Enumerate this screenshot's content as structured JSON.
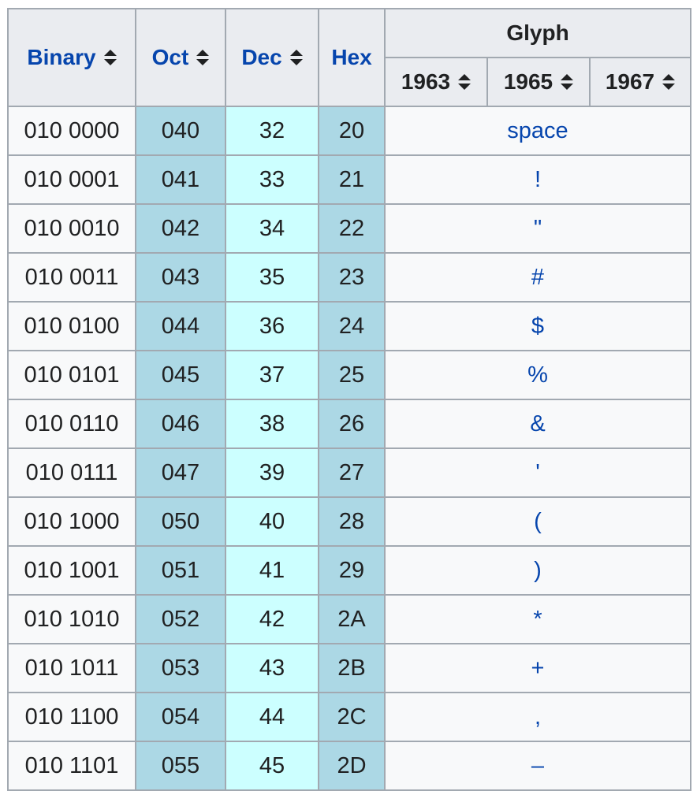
{
  "header": {
    "binary": "Binary",
    "oct": "Oct",
    "dec": "Dec",
    "hex": "Hex",
    "glyph": "Glyph",
    "years": [
      "1963",
      "1965",
      "1967"
    ]
  },
  "rows": [
    {
      "bin": "010 0000",
      "oct": "040",
      "dec": "32",
      "hex": "20",
      "glyph": "space"
    },
    {
      "bin": "010 0001",
      "oct": "041",
      "dec": "33",
      "hex": "21",
      "glyph": "!"
    },
    {
      "bin": "010 0010",
      "oct": "042",
      "dec": "34",
      "hex": "22",
      "glyph": "\""
    },
    {
      "bin": "010 0011",
      "oct": "043",
      "dec": "35",
      "hex": "23",
      "glyph": "#"
    },
    {
      "bin": "010 0100",
      "oct": "044",
      "dec": "36",
      "hex": "24",
      "glyph": "$"
    },
    {
      "bin": "010 0101",
      "oct": "045",
      "dec": "37",
      "hex": "25",
      "glyph": "%"
    },
    {
      "bin": "010 0110",
      "oct": "046",
      "dec": "38",
      "hex": "26",
      "glyph": "&"
    },
    {
      "bin": "010 0111",
      "oct": "047",
      "dec": "39",
      "hex": "27",
      "glyph": "'"
    },
    {
      "bin": "010 1000",
      "oct": "050",
      "dec": "40",
      "hex": "28",
      "glyph": "("
    },
    {
      "bin": "010 1001",
      "oct": "051",
      "dec": "41",
      "hex": "29",
      "glyph": ")"
    },
    {
      "bin": "010 1010",
      "oct": "052",
      "dec": "42",
      "hex": "2A",
      "glyph": "*"
    },
    {
      "bin": "010 1011",
      "oct": "053",
      "dec": "43",
      "hex": "2B",
      "glyph": "+"
    },
    {
      "bin": "010 1100",
      "oct": "054",
      "dec": "44",
      "hex": "2C",
      "glyph": ","
    },
    {
      "bin": "010 1101",
      "oct": "055",
      "dec": "45",
      "hex": "2D",
      "glyph": "–"
    }
  ],
  "colors": {
    "header_bg": "#eaecf0",
    "border": "#a2a9b1",
    "oct_hex_bg": "#acd8e5",
    "dec_bg": "#ccffff",
    "cell_bg": "#f8f9fa",
    "link": "#0645ad",
    "text": "#202122"
  },
  "icons": {
    "sort": "sort-updown-icon"
  }
}
